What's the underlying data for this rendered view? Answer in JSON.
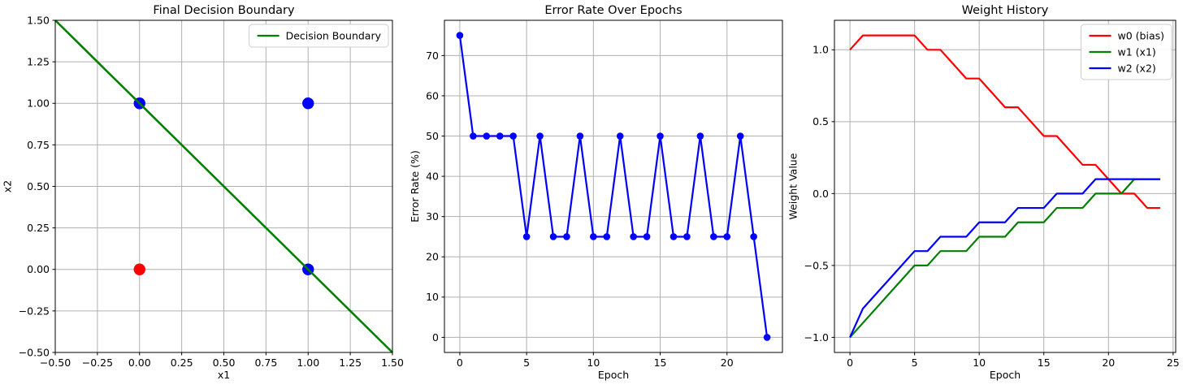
{
  "figure": {
    "background": "#ffffff"
  },
  "style": {
    "grid_color": "#b0b0b0",
    "axis_color": "#000000",
    "tick_label_color": "#000000",
    "legend_edge_color": "#cccccc",
    "legend_bg_color": "#ffffff",
    "red": "#ff0000",
    "green": "#008000",
    "blue": "#0000ff"
  },
  "chart_data": [
    {
      "id": "final-decision-boundary",
      "type": "scatter",
      "title": "Final Decision Boundary",
      "xlabel": "x1",
      "ylabel": "x2",
      "xlim": [
        -0.5,
        1.5
      ],
      "ylim": [
        -0.5,
        1.5
      ],
      "grid": true,
      "legend_position": "upper right",
      "xticks": {
        "values": [
          -0.5,
          -0.25,
          0,
          0.25,
          0.5,
          0.75,
          1,
          1.25,
          1.5
        ],
        "labels": [
          "−0.50",
          "−0.25",
          "0.00",
          "0.25",
          "0.50",
          "0.75",
          "1.00",
          "1.25",
          "1.50"
        ]
      },
      "yticks": {
        "values": [
          -0.5,
          -0.25,
          0,
          0.25,
          0.5,
          0.75,
          1,
          1.25,
          1.5
        ],
        "labels": [
          "−0.50",
          "−0.25",
          "0.00",
          "0.25",
          "0.50",
          "0.75",
          "1.00",
          "1.25",
          "1.50"
        ]
      },
      "scatter_series": [
        {
          "id": "class-0-points",
          "color": "#ff0000",
          "points": [
            [
              0,
              0
            ]
          ]
        },
        {
          "id": "class-1-points",
          "color": "#0000ff",
          "points": [
            [
              0,
              1
            ],
            [
              1,
              0
            ],
            [
              1,
              1
            ]
          ]
        }
      ],
      "series": [
        {
          "id": "decision-boundary",
          "label": "Decision Boundary",
          "color": "#008000",
          "linewidth": 2.6,
          "x": [
            -0.5,
            1.5
          ],
          "values": [
            1.5,
            -0.5
          ]
        }
      ],
      "legend": {
        "entries": [
          {
            "label": "Decision Boundary",
            "color": "#008000"
          }
        ]
      }
    },
    {
      "id": "error-rate",
      "type": "line",
      "title": "Error Rate Over Epochs",
      "xlabel": "Epoch",
      "ylabel": "Error Rate (%)",
      "xlim": [
        -1.15,
        24.15
      ],
      "ylim": [
        -3.75,
        78.75
      ],
      "grid": true,
      "xticks": {
        "values": [
          0,
          5,
          10,
          15,
          20
        ],
        "labels": [
          "0",
          "5",
          "10",
          "15",
          "20"
        ]
      },
      "yticks": {
        "values": [
          0,
          10,
          20,
          30,
          40,
          50,
          60,
          70
        ],
        "labels": [
          "0",
          "10",
          "20",
          "30",
          "40",
          "50",
          "60",
          "70"
        ]
      },
      "x": [
        0,
        1,
        2,
        3,
        4,
        5,
        6,
        7,
        8,
        9,
        10,
        11,
        12,
        13,
        14,
        15,
        16,
        17,
        18,
        19,
        20,
        21,
        22,
        23
      ],
      "series": [
        {
          "id": "error-rate",
          "label": "Error Rate",
          "color": "#0000ff",
          "marker": "o",
          "linewidth": 2.2,
          "values": [
            75,
            50,
            50,
            50,
            50,
            25,
            50,
            25,
            25,
            50,
            25,
            25,
            50,
            25,
            25,
            50,
            25,
            25,
            50,
            25,
            25,
            50,
            25,
            0
          ]
        }
      ]
    },
    {
      "id": "weight-history",
      "type": "line",
      "title": "Weight History",
      "xlabel": "Epoch",
      "ylabel": "Weight Value",
      "xlim": [
        -1.2,
        25.2
      ],
      "ylim": [
        -1.105,
        1.205
      ],
      "grid": true,
      "legend_position": "upper right",
      "xticks": {
        "values": [
          0,
          5,
          10,
          15,
          20,
          25
        ],
        "labels": [
          "0",
          "5",
          "10",
          "15",
          "20",
          "25"
        ]
      },
      "yticks": {
        "values": [
          -1,
          -0.5,
          0,
          0.5,
          1
        ],
        "labels": [
          "−1.0",
          "−0.5",
          "0.0",
          "0.5",
          "1.0"
        ]
      },
      "x": [
        0,
        1,
        2,
        3,
        4,
        5,
        6,
        7,
        8,
        9,
        10,
        11,
        12,
        13,
        14,
        15,
        16,
        17,
        18,
        19,
        20,
        21,
        22,
        23,
        24
      ],
      "series": [
        {
          "id": "w0-bias",
          "label": "w0 (bias)",
          "color": "#ff0000",
          "linewidth": 2.2,
          "values": [
            1.0,
            1.1,
            1.1,
            1.1,
            1.1,
            1.1,
            1.0,
            1.0,
            0.9,
            0.8,
            0.8,
            0.7,
            0.6,
            0.6,
            0.5,
            0.4,
            0.4,
            0.3,
            0.2,
            0.2,
            0.1,
            0.0,
            0.0,
            -0.1,
            -0.1
          ]
        },
        {
          "id": "w1-x1",
          "label": "w1 (x1)",
          "color": "#008000",
          "linewidth": 2.2,
          "values": [
            -1.0,
            -0.9,
            -0.8,
            -0.7,
            -0.6,
            -0.5,
            -0.5,
            -0.4,
            -0.4,
            -0.4,
            -0.3,
            -0.3,
            -0.3,
            -0.2,
            -0.2,
            -0.2,
            -0.1,
            -0.1,
            -0.1,
            0.0,
            0.0,
            0.0,
            0.1,
            0.1,
            0.1
          ]
        },
        {
          "id": "w2-x2",
          "label": "w2 (x2)",
          "color": "#0000ff",
          "linewidth": 2.2,
          "values": [
            -1.0,
            -0.8,
            -0.7,
            -0.6,
            -0.5,
            -0.4,
            -0.4,
            -0.3,
            -0.3,
            -0.3,
            -0.2,
            -0.2,
            -0.2,
            -0.1,
            -0.1,
            -0.1,
            0.0,
            0.0,
            0.0,
            0.1,
            0.1,
            0.1,
            0.1,
            0.1,
            0.1
          ]
        }
      ],
      "legend": {
        "entries": [
          {
            "label": "w0 (bias)",
            "color": "#ff0000"
          },
          {
            "label": "w1 (x1)",
            "color": "#008000"
          },
          {
            "label": "w2 (x2)",
            "color": "#0000ff"
          }
        ]
      }
    }
  ]
}
